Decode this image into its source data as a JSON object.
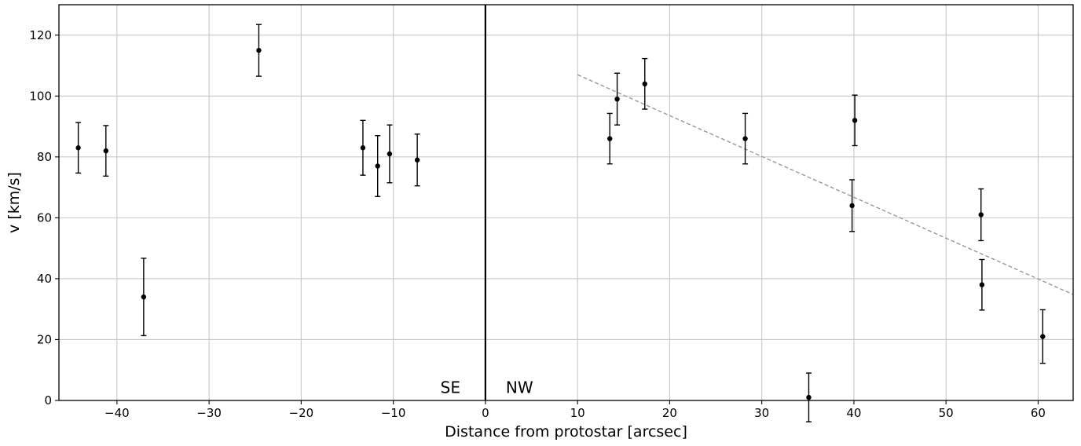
{
  "chart_data": {
    "type": "scatter",
    "xlabel": "Distance from protostar [arcsec]",
    "ylabel": "v [km/s]",
    "xlim": [
      -46.3,
      63.8
    ],
    "ylim": [
      0,
      130
    ],
    "x_ticks": [
      -40,
      -30,
      -20,
      -10,
      0,
      10,
      20,
      30,
      40,
      50,
      60
    ],
    "y_ticks": [
      0,
      20,
      40,
      60,
      80,
      100,
      120
    ],
    "grid": true,
    "points": [
      {
        "x": -44.2,
        "y": 83,
        "err": 8.3
      },
      {
        "x": -41.2,
        "y": 82,
        "err": 8.3
      },
      {
        "x": -37.1,
        "y": 34,
        "err": 12.7
      },
      {
        "x": -24.6,
        "y": 115,
        "err": 8.5
      },
      {
        "x": -13.3,
        "y": 83,
        "err": 9.0
      },
      {
        "x": -11.7,
        "y": 77,
        "err": 10.0
      },
      {
        "x": -10.4,
        "y": 81,
        "err": 9.5
      },
      {
        "x": -7.4,
        "y": 79,
        "err": 8.5
      },
      {
        "x": 13.5,
        "y": 86,
        "err": 8.3
      },
      {
        "x": 14.3,
        "y": 99,
        "err": 8.5
      },
      {
        "x": 17.3,
        "y": 104,
        "err": 8.3
      },
      {
        "x": 28.2,
        "y": 86,
        "err": 8.3
      },
      {
        "x": 35.1,
        "y": 1,
        "err": 8.0
      },
      {
        "x": 39.8,
        "y": 64,
        "err": 8.5
      },
      {
        "x": 40.1,
        "y": 92,
        "err": 8.3
      },
      {
        "x": 53.8,
        "y": 61,
        "err": 8.5
      },
      {
        "x": 53.9,
        "y": 38,
        "err": 8.3
      },
      {
        "x": 60.5,
        "y": 21,
        "err": 8.8
      }
    ],
    "fit_line": {
      "x": [
        10,
        63.8
      ],
      "y": [
        107,
        34.8
      ],
      "color": "#999999"
    },
    "vertical_line": {
      "x": 0,
      "color": "#000000"
    },
    "annotations": [
      {
        "text": "SE",
        "x": -3.8,
        "y": 2.5
      },
      {
        "text": "NW",
        "x": 3.7,
        "y": 2.5
      }
    ],
    "colors": {
      "points": "#000000",
      "grid": "#c8c8c8"
    }
  }
}
